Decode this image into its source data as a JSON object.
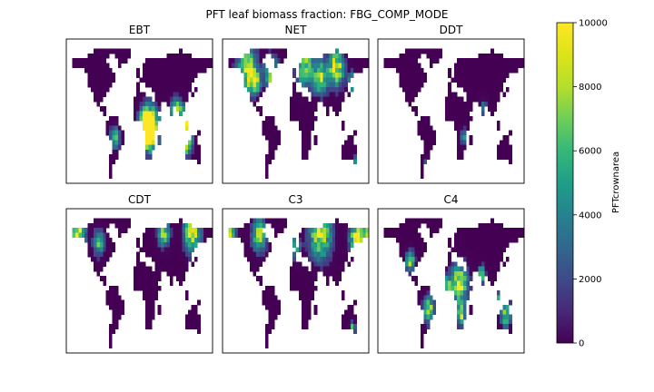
{
  "chart_data": {
    "type": "heatmap",
    "title": "PFT leaf biomass fraction: FBG_COMP_MODE",
    "panels": [
      {
        "name": "EBT",
        "hotspots": [
          [
            -7,
            0.9,
            25,
            30
          ],
          [
            2,
            0.85,
            18,
            28
          ],
          [
            -3,
            0.8,
            30,
            20
          ],
          [
            5,
            0.7,
            55,
            12
          ],
          [
            13,
            0.9,
            90,
            20
          ],
          [
            -17,
            0.85,
            115,
            20
          ],
          [
            2,
            0.85,
            115,
            24
          ],
          [
            -12,
            0.6,
            -60,
            18
          ]
        ]
      },
      {
        "name": "NET",
        "hotspots": [
          [
            58,
            0.85,
            -120,
            35
          ],
          [
            60,
            0.9,
            100,
            28
          ],
          [
            62,
            0.8,
            20,
            30
          ],
          [
            55,
            0.85,
            -60,
            24
          ],
          [
            45,
            0.7,
            -100,
            18
          ],
          [
            50,
            0.8,
            60,
            26
          ],
          [
            45,
            0.6,
            140,
            16
          ],
          [
            -40,
            0.7,
            145,
            10
          ]
        ]
      },
      {
        "name": "DDT",
        "hotspots": [
          [
            -12,
            0.5,
            30,
            12
          ],
          [
            18,
            0.4,
            80,
            14
          ],
          [
            -40,
            0.4,
            -60,
            10
          ]
        ]
      },
      {
        "name": "CDT",
        "hotspots": [
          [
            65,
            0.95,
            -150,
            25
          ],
          [
            66,
            0.9,
            130,
            30
          ],
          [
            65,
            0.7,
            60,
            22
          ],
          [
            55,
            0.6,
            -100,
            20
          ]
        ]
      },
      {
        "name": "C3",
        "hotspots": [
          [
            60,
            0.9,
            -170,
            30
          ],
          [
            65,
            0.9,
            60,
            40
          ],
          [
            62,
            0.8,
            -90,
            25
          ],
          [
            60,
            0.85,
            150,
            26
          ],
          [
            50,
            0.6,
            0,
            18
          ],
          [
            -35,
            0.6,
            140,
            10
          ]
        ]
      },
      {
        "name": "C4",
        "hotspots": [
          [
            12,
            0.9,
            20,
            30
          ],
          [
            -15,
            0.85,
            -55,
            20
          ],
          [
            -20,
            0.8,
            25,
            15
          ],
          [
            -20,
            0.75,
            135,
            18
          ],
          [
            22,
            0.8,
            75,
            12
          ],
          [
            35,
            0.7,
            -100,
            16
          ],
          [
            10,
            0.6,
            -10,
            14
          ],
          [
            -5,
            0.6,
            120,
            12
          ]
        ]
      }
    ],
    "colorbar": {
      "label": "PFTcrownarea",
      "vmin": 0,
      "vmax": 10000,
      "ticks": [
        "0",
        "2000",
        "4000",
        "6000",
        "8000",
        "10000"
      ],
      "colormap": "viridis"
    }
  }
}
